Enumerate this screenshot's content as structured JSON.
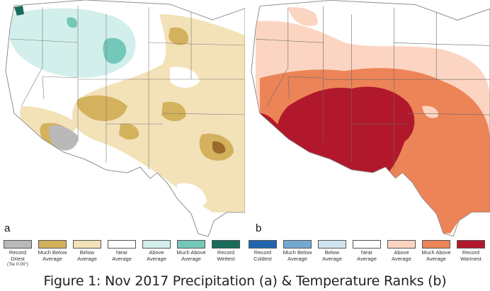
{
  "panels": [
    {
      "id": "a",
      "label": "a"
    },
    {
      "id": "b",
      "label": "b"
    }
  ],
  "precip_legend": [
    {
      "label": "Record Driest",
      "note": "(Tie 0.00\")",
      "color": "#b9b9b9"
    },
    {
      "label": "Much Below Average",
      "color": "#d4b15c"
    },
    {
      "label": "Below Average",
      "color": "#f3e1b8"
    },
    {
      "label": "Near Average",
      "color": "#ffffff"
    },
    {
      "label": "Above Average",
      "color": "#d3efec"
    },
    {
      "label": "Much Above Average",
      "color": "#74c8b9"
    },
    {
      "label": "Record Wettest",
      "color": "#1a6b5a"
    }
  ],
  "temp_legend": [
    {
      "label": "Record Coldest",
      "color": "#2166ac"
    },
    {
      "label": "Much Below Average",
      "color": "#74a9cf"
    },
    {
      "label": "Below Average",
      "color": "#d1e5f0"
    },
    {
      "label": "Near Average",
      "color": "#ffffff"
    },
    {
      "label": "Above Average",
      "color": "#fcd5c2"
    },
    {
      "label": "Much Above Average",
      "color": "#ec8458"
    },
    {
      "label": "Record Warmest",
      "color": "#b2182b"
    }
  ],
  "caption": "Figure 1: Nov 2017 Precipitation (a) & Temperature Ranks (b)"
}
